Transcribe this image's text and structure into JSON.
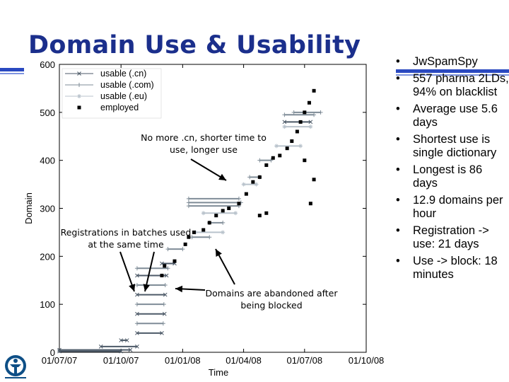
{
  "slide": {
    "title": "Domain Use & Usability",
    "bullets": [
      "JwSpamSpy",
      "557 pharma 2LDs, 94% on blacklist",
      "Average use 5.6 days",
      "Shortest use is single dictionary",
      "Longest is 86 days",
      "12.9 domains per hour",
      "Registration -> use: 21 days",
      "Use -> block: 18 minutes"
    ],
    "bullet_glyph": "•"
  },
  "annotations": {
    "cn_note": "No more .cn, shorter time to use, longer use",
    "batch_note": "Registrations in batches used at the same time",
    "abandon_note": "Domains are abandoned after being blocked"
  },
  "colors": {
    "title": "#1b2f8c",
    "accent_rule": "#2a49c0",
    "usable_cn": "#4d5a68",
    "usable_com": "#7f8c97",
    "usable_eu": "#b9c3cc",
    "employed": "#000000"
  },
  "chart_data": {
    "type": "scatter",
    "xlabel": "Time",
    "ylabel": "Domain",
    "x_ticks": [
      "01/07/07",
      "01/10/07",
      "01/01/08",
      "01/04/08",
      "01/07/08",
      "01/10/08"
    ],
    "x_range": [
      "01/07/07",
      "01/10/08"
    ],
    "y_ticks": [
      0,
      100,
      200,
      300,
      400,
      500,
      600
    ],
    "ylim": [
      0,
      600
    ],
    "legend_position": "top-left",
    "grid": false,
    "series": [
      {
        "name": "usable (.cn)",
        "marker": "x",
        "segments": [
          {
            "domain": 2,
            "start": "01/07/07",
            "end": "01/10/07"
          },
          {
            "domain": 5,
            "start": "01/07/07",
            "end": "15/10/07"
          },
          {
            "domain": 25,
            "start": "01/10/07",
            "end": "10/10/07"
          },
          {
            "domain": 12,
            "start": "01/09/07",
            "end": "25/10/07"
          },
          {
            "domain": 40,
            "start": "25/10/07",
            "end": "01/12/07"
          },
          {
            "domain": 80,
            "start": "25/10/07",
            "end": "05/12/07"
          },
          {
            "domain": 120,
            "start": "25/10/07",
            "end": "06/12/07"
          },
          {
            "domain": 160,
            "start": "25/10/07",
            "end": "08/12/07"
          },
          {
            "domain": 185,
            "start": "01/12/07",
            "end": "20/12/07"
          },
          {
            "domain": 480,
            "start": "01/06/08",
            "end": "10/07/08"
          }
        ]
      },
      {
        "name": "usable (.com)",
        "marker": "+",
        "segments": [
          {
            "domain": 60,
            "start": "25/10/07",
            "end": "03/12/07"
          },
          {
            "domain": 100,
            "start": "25/10/07",
            "end": "04/12/07"
          },
          {
            "domain": 140,
            "start": "25/10/07",
            "end": "06/12/07"
          },
          {
            "domain": 175,
            "start": "25/10/07",
            "end": "10/12/07"
          },
          {
            "domain": 215,
            "start": "10/12/07",
            "end": "01/01/08"
          },
          {
            "domain": 240,
            "start": "15/01/08",
            "end": "10/02/08"
          },
          {
            "domain": 270,
            "start": "10/02/08",
            "end": "01/03/08"
          },
          {
            "domain": 305,
            "start": "10/01/08",
            "end": "25/03/08"
          },
          {
            "domain": 312,
            "start": "10/01/08",
            "end": "28/03/08"
          },
          {
            "domain": 320,
            "start": "10/01/08",
            "end": "25/03/08"
          },
          {
            "domain": 365,
            "start": "10/04/08",
            "end": "25/04/08"
          },
          {
            "domain": 400,
            "start": "25/04/08",
            "end": "12/05/08"
          },
          {
            "domain": 495,
            "start": "01/06/08",
            "end": "15/07/08"
          },
          {
            "domain": 500,
            "start": "15/06/08",
            "end": "25/07/08"
          }
        ]
      },
      {
        "name": "usable (.eu)",
        "marker": "*",
        "segments": [
          {
            "domain": 250,
            "start": "20/01/08",
            "end": "01/03/08"
          },
          {
            "domain": 290,
            "start": "01/02/08",
            "end": "20/03/08"
          },
          {
            "domain": 350,
            "start": "01/04/08",
            "end": "20/04/08"
          },
          {
            "domain": 430,
            "start": "20/05/08",
            "end": "25/06/08"
          },
          {
            "domain": 470,
            "start": "01/06/08",
            "end": "10/07/08"
          }
        ]
      },
      {
        "name": "employed",
        "marker": ".",
        "points": [
          {
            "date": "01/12/07",
            "domain": 160
          },
          {
            "date": "05/12/07",
            "domain": 180
          },
          {
            "date": "20/12/07",
            "domain": 190
          },
          {
            "date": "05/01/08",
            "domain": 225
          },
          {
            "date": "10/01/08",
            "domain": 240
          },
          {
            "date": "18/01/08",
            "domain": 250
          },
          {
            "date": "01/02/08",
            "domain": 255
          },
          {
            "date": "10/02/08",
            "domain": 270
          },
          {
            "date": "20/02/08",
            "domain": 285
          },
          {
            "date": "01/03/08",
            "domain": 295
          },
          {
            "date": "10/03/08",
            "domain": 300
          },
          {
            "date": "25/03/08",
            "domain": 310
          },
          {
            "date": "05/04/08",
            "domain": 330
          },
          {
            "date": "15/04/08",
            "domain": 355
          },
          {
            "date": "25/04/08",
            "domain": 365
          },
          {
            "date": "05/05/08",
            "domain": 390
          },
          {
            "date": "15/05/08",
            "domain": 405
          },
          {
            "date": "25/05/08",
            "domain": 410
          },
          {
            "date": "05/06/08",
            "domain": 425
          },
          {
            "date": "12/06/08",
            "domain": 440
          },
          {
            "date": "20/06/08",
            "domain": 460
          },
          {
            "date": "25/06/08",
            "domain": 480
          },
          {
            "date": "01/07/08",
            "domain": 500
          },
          {
            "date": "08/07/08",
            "domain": 520
          },
          {
            "date": "15/07/08",
            "domain": 545
          },
          {
            "date": "25/04/08",
            "domain": 285
          },
          {
            "date": "05/05/08",
            "domain": 290
          },
          {
            "date": "10/07/08",
            "domain": 310
          },
          {
            "date": "15/07/08",
            "domain": 360
          },
          {
            "date": "01/07/08",
            "domain": 400
          }
        ]
      }
    ]
  }
}
